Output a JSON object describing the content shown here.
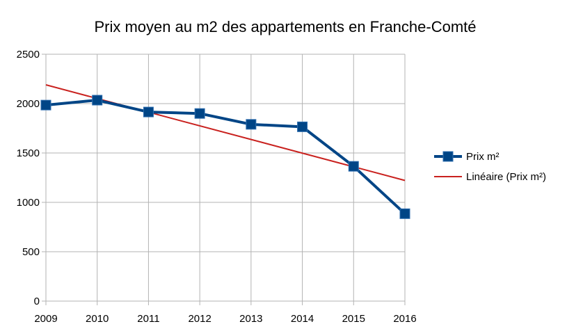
{
  "chart_data": {
    "type": "line",
    "title": "Prix moyen au m2 des appartements en Franche-Comté",
    "x": [
      "2009",
      "2010",
      "2011",
      "2012",
      "2013",
      "2014",
      "2015",
      "2016"
    ],
    "ylim": [
      0,
      2500
    ],
    "yticks": [
      "0",
      "500",
      "1000",
      "1500",
      "2000",
      "2500"
    ],
    "grid": true,
    "legend_position": "right",
    "series": [
      {
        "name": "Prix m²",
        "values": [
          1985,
          2035,
          1915,
          1900,
          1790,
          1765,
          1365,
          885
        ],
        "color": "#004586",
        "marker": "square"
      }
    ],
    "trendline": {
      "name": "Linéaire (Prix m²)",
      "type": "linear",
      "start": 2190,
      "end": 1222,
      "color": "#c9211e"
    }
  }
}
